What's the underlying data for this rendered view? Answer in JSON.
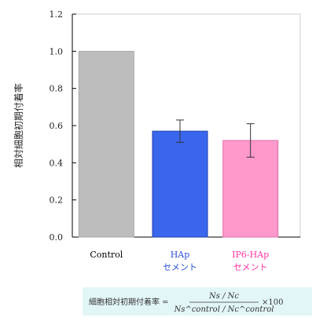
{
  "chart_data": {
    "type": "bar",
    "ylabel": "相対細胞初期付着率",
    "ylim": [
      0,
      1.2
    ],
    "yticks": [
      "0.0",
      "0.2",
      "0.4",
      "0.6",
      "0.8",
      "1.0",
      "1.2"
    ],
    "grid": false,
    "categories": [
      {
        "lines": [
          "Control"
        ],
        "color": "#000000"
      },
      {
        "lines": [
          "HAp",
          "セメント"
        ],
        "color": "#2b4fd6"
      },
      {
        "lines": [
          "IP6-HAp",
          "セメント"
        ],
        "color": "#ff33a3"
      }
    ],
    "values": [
      1.0,
      0.57,
      0.52
    ],
    "errors": [
      0,
      0.06,
      0.09
    ],
    "bar_colors": [
      "#bdbdbd",
      "#3a66ee",
      "#ff99cc"
    ]
  },
  "formula": {
    "lhs": "細胞相対初期付着率 =",
    "numerator": "Ns / Nc",
    "denominator": "Ns^control / Nc^control",
    "suffix": "×100"
  }
}
